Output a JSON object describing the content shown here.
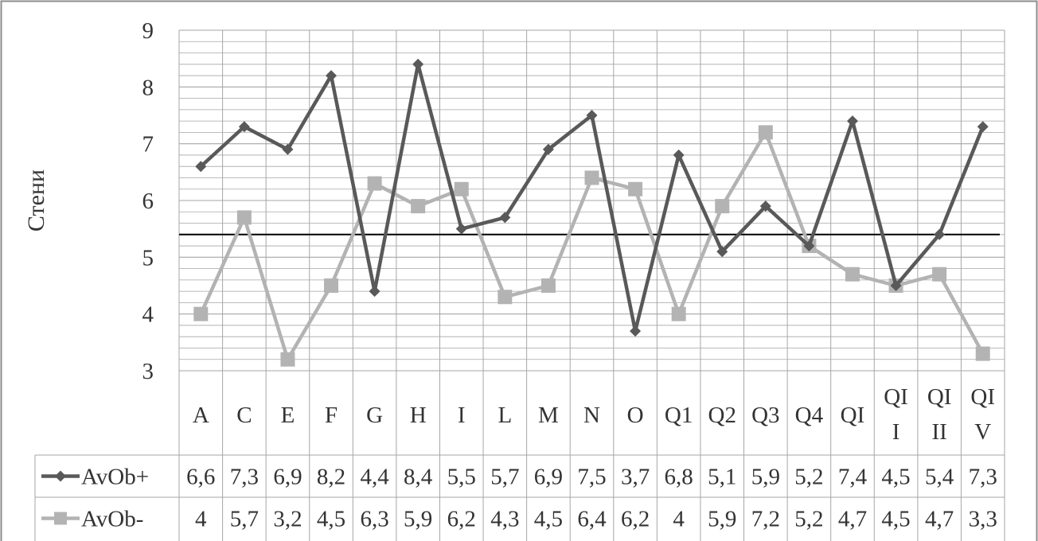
{
  "chart_data": {
    "type": "line",
    "ylabel": "Стени",
    "ylim": [
      3,
      9
    ],
    "yticks": [
      "3",
      "4",
      "5",
      "6",
      "7",
      "8",
      "9"
    ],
    "categories": [
      "A",
      "C",
      "E",
      "F",
      "G",
      "H",
      "I",
      "L",
      "M",
      "N",
      "O",
      "Q1",
      "Q2",
      "Q3",
      "Q4",
      "QI",
      "QII",
      "QIII",
      "QIV"
    ],
    "category_labels": [
      "A",
      "C",
      "E",
      "F",
      "G",
      "H",
      "I",
      "L",
      "M",
      "N",
      "O",
      "Q1",
      "Q2",
      "Q3",
      "Q4",
      "QI",
      "QI\nI",
      "QI\nII",
      "QI\nV"
    ],
    "series": [
      {
        "name": "AvOb+",
        "marker": "diamond",
        "color": "#595959",
        "values": [
          6.6,
          7.3,
          6.9,
          8.2,
          4.4,
          8.4,
          5.5,
          5.7,
          6.9,
          7.5,
          3.7,
          6.8,
          5.1,
          5.9,
          5.2,
          7.4,
          4.5,
          5.4,
          7.3
        ],
        "table_values": [
          "6,6",
          "7,3",
          "6,9",
          "8,2",
          "4,4",
          "8,4",
          "5,5",
          "5,7",
          "6,9",
          "7,5",
          "3,7",
          "6,8",
          "5,1",
          "5,9",
          "5,2",
          "7,4",
          "4,5",
          "5,4",
          "7,3"
        ]
      },
      {
        "name": "AvOb-",
        "marker": "square",
        "color": "#b3b3b3",
        "values": [
          4,
          5.7,
          3.2,
          4.5,
          6.3,
          5.9,
          6.2,
          4.3,
          4.5,
          6.4,
          6.2,
          4,
          5.9,
          7.2,
          5.2,
          4.7,
          4.5,
          4.7,
          3.3
        ],
        "table_values": [
          "4",
          "5,7",
          "3,2",
          "4,5",
          "6,3",
          "5,9",
          "6,2",
          "4,3",
          "4,5",
          "6,4",
          "6,2",
          "4",
          "5,9",
          "7,2",
          "5,2",
          "4,7",
          "4,5",
          "4,7",
          "3,3"
        ]
      }
    ],
    "reference_line": 5.4,
    "grid": true,
    "data_table": true
  }
}
